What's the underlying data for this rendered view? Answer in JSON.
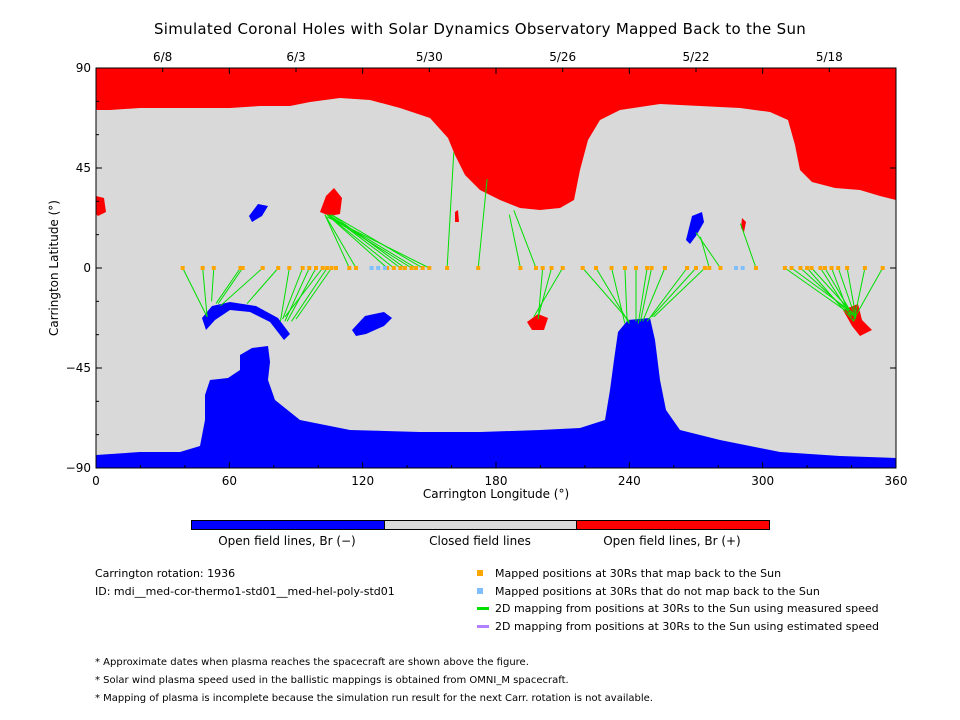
{
  "title": "Simulated Coronal Holes with Solar Dynamics Observatory Mapped Back to the Sun",
  "chart_data": {
    "type": "map",
    "xlabel": "Carrington Longitude (°)",
    "ylabel": "Carrington Latitude (°)",
    "xlim": [
      0,
      360
    ],
    "ylim": [
      -90,
      90
    ],
    "x_ticks": [
      "0",
      "60",
      "120",
      "180",
      "240",
      "300",
      "360"
    ],
    "y_ticks": [
      "90",
      "45",
      "0",
      "−45",
      "−90"
    ],
    "date_ticks": [
      {
        "lon": 30,
        "label": "6/8"
      },
      {
        "lon": 90,
        "label": "6/3"
      },
      {
        "lon": 150,
        "label": "5/30"
      },
      {
        "lon": 210,
        "label": "5/26"
      },
      {
        "lon": 270,
        "label": "5/22"
      },
      {
        "lon": 330,
        "label": "5/18"
      }
    ],
    "colors": {
      "open_negative": "#0000ff",
      "closed": "#d9d9d9",
      "open_positive": "#ff0000",
      "mapped": "#ffa500",
      "unmapped": "#7fbfff",
      "measured": "#00e000",
      "estimated": "#b080ff"
    },
    "mapped_positions_lon": [
      39,
      48,
      53,
      65,
      66,
      75,
      82,
      87,
      93,
      96,
      99,
      102,
      104,
      106,
      108,
      114,
      117,
      131,
      134,
      137,
      139,
      142,
      144,
      147,
      150,
      158,
      172,
      191,
      198,
      201,
      205,
      210,
      219,
      225,
      232,
      238,
      243,
      248,
      250,
      256,
      266,
      270,
      274,
      276,
      281,
      297,
      310,
      313,
      317,
      320,
      322,
      326,
      328,
      331,
      334,
      338,
      346,
      354
    ],
    "unmapped_positions_lon": [
      124,
      127,
      130,
      288,
      291
    ],
    "measured_mappings": [
      [
        39,
        0,
        50,
        -22
      ],
      [
        48,
        0,
        50,
        -22
      ],
      [
        53,
        0,
        52,
        -15
      ],
      [
        65,
        0,
        54,
        -16
      ],
      [
        66,
        0,
        55,
        -16
      ],
      [
        75,
        0,
        56,
        -17
      ],
      [
        82,
        0,
        68,
        -16
      ],
      [
        87,
        0,
        83,
        -24
      ],
      [
        93,
        0,
        84,
        -23
      ],
      [
        96,
        0,
        85,
        -24
      ],
      [
        99,
        0,
        86,
        -24
      ],
      [
        102,
        0,
        85,
        -22
      ],
      [
        104,
        0,
        88,
        -24
      ],
      [
        106,
        0,
        90,
        -23
      ],
      [
        114,
        0,
        103,
        24
      ],
      [
        117,
        0,
        103,
        24
      ],
      [
        131,
        0,
        104,
        24
      ],
      [
        134,
        0,
        104,
        24
      ],
      [
        137,
        0,
        105,
        24
      ],
      [
        139,
        0,
        106,
        24
      ],
      [
        142,
        0,
        105,
        23
      ],
      [
        144,
        0,
        104,
        24
      ],
      [
        147,
        0,
        106,
        24
      ],
      [
        150,
        0,
        104,
        23
      ],
      [
        158,
        0,
        161,
        52
      ],
      [
        172,
        0,
        176,
        40
      ],
      [
        191,
        0,
        186,
        24
      ],
      [
        198,
        0,
        188,
        26
      ],
      [
        201,
        0,
        199,
        -23
      ],
      [
        205,
        0,
        199,
        -22
      ],
      [
        210,
        0,
        197,
        -22
      ],
      [
        219,
        0,
        240,
        -24
      ],
      [
        225,
        0,
        240,
        -25
      ],
      [
        232,
        0,
        238,
        -25
      ],
      [
        238,
        0,
        239,
        -24
      ],
      [
        243,
        0,
        243,
        -24
      ],
      [
        248,
        0,
        244,
        -25
      ],
      [
        250,
        0,
        245,
        -24
      ],
      [
        256,
        0,
        246,
        -24
      ],
      [
        266,
        0,
        248,
        -24
      ],
      [
        270,
        0,
        250,
        -22
      ],
      [
        274,
        0,
        251,
        -22
      ],
      [
        276,
        0,
        272,
        14
      ],
      [
        281,
        0,
        270,
        16
      ],
      [
        297,
        0,
        290,
        20
      ],
      [
        310,
        0,
        337,
        -19
      ],
      [
        313,
        0,
        339,
        -19
      ],
      [
        317,
        0,
        340,
        -21
      ],
      [
        320,
        0,
        341,
        -24
      ],
      [
        322,
        0,
        342,
        -22
      ],
      [
        326,
        0,
        340,
        -22
      ],
      [
        328,
        0,
        341,
        -22
      ],
      [
        331,
        0,
        339,
        -21
      ],
      [
        334,
        0,
        342,
        -23
      ],
      [
        338,
        0,
        342,
        -22
      ],
      [
        346,
        0,
        341,
        -24
      ],
      [
        354,
        0,
        341,
        -23
      ]
    ]
  },
  "colorbar_labels": {
    "negative": "Open field lines, Br (−)",
    "closed": "Closed field lines",
    "positive": "Open field lines, Br (+)"
  },
  "info": {
    "rotation": "Carrington rotation: 1936",
    "id": "ID: mdi__med-cor-thermo1-std01__med-hel-poly-std01"
  },
  "legend": {
    "mapped": "Mapped positions at 30Rs that map back to the Sun",
    "unmapped": "Mapped positions at 30Rs that do not map back to the Sun",
    "measured": "2D mapping from positions at 30Rs to the Sun using measured speed",
    "estimated": "2D mapping from positions at 30Rs to the Sun using estimated speed"
  },
  "notes": [
    "* Approximate dates when plasma reaches the spacecraft are shown above the figure.",
    "* Solar wind plasma speed used in the ballistic mappings is obtained from OMNI_M spacecraft.",
    "* Mapping of plasma is incomplete because the simulation run result for the next Carr. rotation is not available."
  ]
}
